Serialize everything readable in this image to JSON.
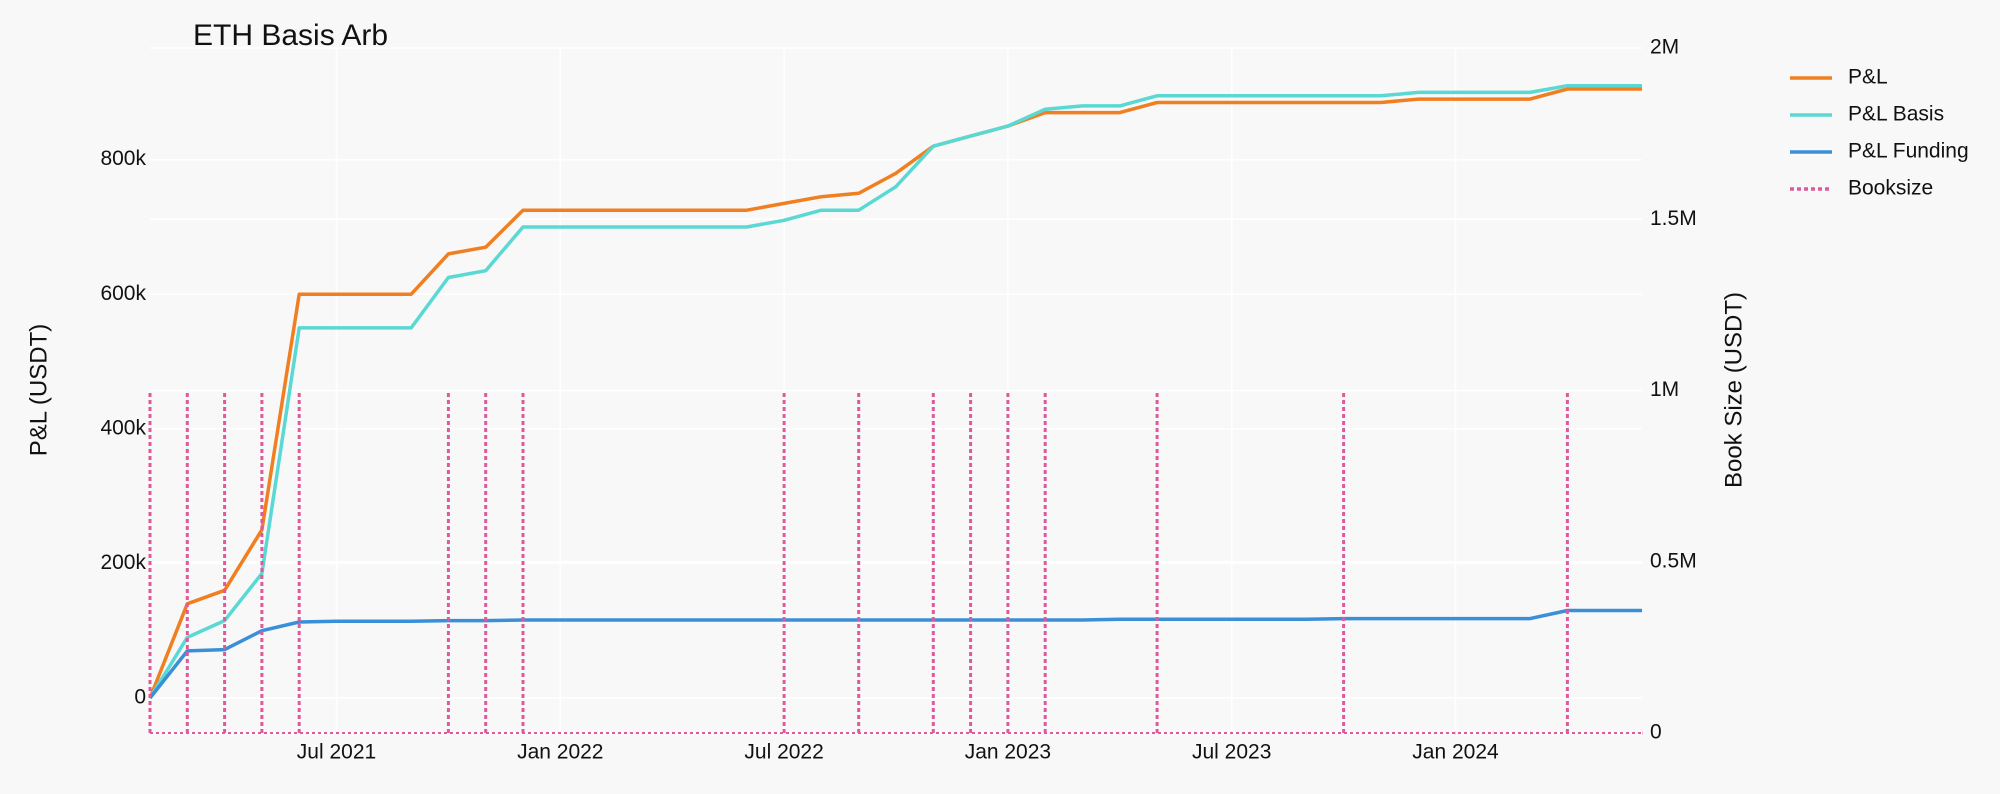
{
  "chart_data": {
    "type": "line",
    "title": "ETH Basis Arb",
    "y_label": "P&L (USDT)",
    "y2_label": "Book Size (USDT)",
    "x": [
      "2021-02",
      "2021-03",
      "2021-04",
      "2021-05",
      "2021-06",
      "2021-07",
      "2021-08",
      "2021-09",
      "2021-10",
      "2021-11",
      "2021-12",
      "2022-01",
      "2022-02",
      "2022-03",
      "2022-04",
      "2022-05",
      "2022-06",
      "2022-07",
      "2022-08",
      "2022-09",
      "2022-10",
      "2022-11",
      "2022-12",
      "2023-01",
      "2023-02",
      "2023-03",
      "2023-04",
      "2023-05",
      "2023-06",
      "2023-07",
      "2023-08",
      "2023-09",
      "2023-10",
      "2023-11",
      "2023-12",
      "2024-01",
      "2024-02",
      "2024-03",
      "2024-04",
      "2024-05",
      "2024-06"
    ],
    "series": [
      {
        "name": "P&L",
        "color": "#f07f22",
        "values": [
          0,
          140000,
          160000,
          250000,
          600000,
          600000,
          600000,
          600000,
          660000,
          670000,
          725000,
          725000,
          725000,
          725000,
          725000,
          725000,
          725000,
          735000,
          745000,
          750000,
          780000,
          820000,
          835000,
          850000,
          870000,
          870000,
          870000,
          885000,
          885000,
          885000,
          885000,
          885000,
          885000,
          885000,
          890000,
          890000,
          890000,
          890000,
          905000,
          905000,
          905000
        ]
      },
      {
        "name": "P&L Basis",
        "color": "#5ad9d4",
        "values": [
          0,
          90000,
          115000,
          185000,
          550000,
          550000,
          550000,
          550000,
          625000,
          635000,
          700000,
          700000,
          700000,
          700000,
          700000,
          700000,
          700000,
          710000,
          725000,
          725000,
          760000,
          820000,
          835000,
          850000,
          875000,
          880000,
          880000,
          895000,
          895000,
          895000,
          895000,
          895000,
          895000,
          895000,
          900000,
          900000,
          900000,
          900000,
          910000,
          910000,
          910000
        ]
      },
      {
        "name": "P&L Funding",
        "color": "#3a8fd9",
        "values": [
          0,
          70000,
          72000,
          100000,
          113000,
          114000,
          114000,
          114000,
          115000,
          115000,
          116000,
          116000,
          116000,
          116000,
          116000,
          116000,
          116000,
          116000,
          116000,
          116000,
          116000,
          116000,
          116000,
          116000,
          116000,
          116000,
          117000,
          117000,
          117000,
          117000,
          117000,
          117000,
          118000,
          118000,
          118000,
          118000,
          118000,
          118000,
          130000,
          130000,
          130000
        ]
      },
      {
        "name": "Booksize",
        "color": "#de5b9b",
        "type": "stem",
        "dash": "dot",
        "axis": "y2",
        "values": [
          1000000,
          1000000,
          1000000,
          1000000,
          1000000,
          0,
          0,
          0,
          1000000,
          1000000,
          1000000,
          0,
          0,
          0,
          0,
          0,
          0,
          1000000,
          0,
          1000000,
          0,
          1000000,
          1000000,
          1000000,
          1000000,
          0,
          0,
          1000000,
          0,
          0,
          0,
          0,
          1000000,
          0,
          0,
          0,
          0,
          0,
          1000000,
          0,
          0
        ]
      }
    ],
    "xlim": [
      "2021-02",
      "2024-06"
    ],
    "xticks": [
      {
        "value": "2021-07",
        "label": "Jul 2021"
      },
      {
        "value": "2022-01",
        "label": "Jan 2022"
      },
      {
        "value": "2022-07",
        "label": "Jul 2022"
      },
      {
        "value": "2023-01",
        "label": "Jan 2023"
      },
      {
        "value": "2023-07",
        "label": "Jul 2023"
      },
      {
        "value": "2024-01",
        "label": "Jan 2024"
      }
    ],
    "ylim": [
      -52000,
      966000
    ],
    "yticks": [
      0,
      {
        "value": 200000,
        "label": "200k"
      },
      {
        "value": 400000,
        "label": "400k"
      },
      {
        "value": 600000,
        "label": "600k"
      },
      {
        "value": 800000,
        "label": "800k"
      }
    ],
    "y2lim": [
      0,
      2000000
    ],
    "y2ticks": [
      0,
      {
        "value": 500000,
        "label": "0.5M"
      },
      {
        "value": 1000000,
        "label": "1M"
      },
      {
        "value": 1500000,
        "label": "1.5M"
      },
      {
        "value": 2000000,
        "label": "2M"
      }
    ],
    "grid": true,
    "legend": "top-right"
  }
}
